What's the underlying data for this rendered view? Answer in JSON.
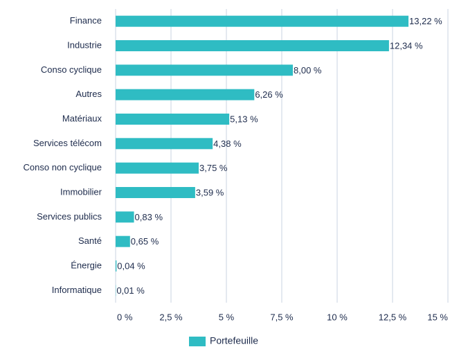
{
  "chart_data": {
    "type": "bar",
    "orientation": "horizontal",
    "categories": [
      "Finance",
      "Industrie",
      "Conso cyclique",
      "Autres",
      "Matériaux",
      "Services télécom",
      "Conso non cyclique",
      "Immobilier",
      "Services publics",
      "Santé",
      "Énergie",
      "Informatique"
    ],
    "series": [
      {
        "name": "Portefeuille",
        "color": "#2fbcc3",
        "values": [
          13.22,
          12.34,
          8.0,
          6.26,
          5.13,
          4.38,
          3.75,
          3.59,
          0.83,
          0.65,
          0.04,
          0.01
        ],
        "value_labels": [
          "13,22 %",
          "12,34 %",
          "8,00 %",
          "6,26 %",
          "5,13 %",
          "4,38 %",
          "3,75 %",
          "3,59 %",
          "0,83 %",
          "0,65 %",
          "0,04 %",
          "0,01 %"
        ]
      }
    ],
    "xlim": [
      0,
      15
    ],
    "xticks": [
      {
        "value": 0,
        "label": "0 %"
      },
      {
        "value": 2.5,
        "label": "2,5 %"
      },
      {
        "value": 5,
        "label": "5 %"
      },
      {
        "value": 7.5,
        "label": "7,5 %"
      },
      {
        "value": 10,
        "label": "10 %"
      },
      {
        "value": 12.5,
        "label": "12,5 %"
      },
      {
        "value": 15,
        "label": "15 %"
      }
    ],
    "grid": true,
    "legend": "bottom"
  }
}
